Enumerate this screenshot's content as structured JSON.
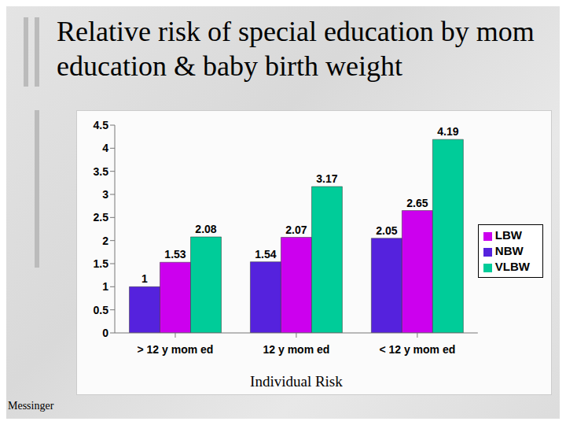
{
  "chart_data": {
    "type": "bar",
    "title": "Relative risk of special education by mom education & baby birth weight",
    "x_label": "Individual Risk",
    "annotations": [
      "Messinger"
    ],
    "categories": [
      "> 12 y mom ed",
      "12 y mom ed",
      "< 12 y mom ed"
    ],
    "series": [
      {
        "name": "NBW",
        "color": "#5522dd",
        "values": [
          1,
          1.54,
          2.05
        ]
      },
      {
        "name": "LBW",
        "color": "#cc00ee",
        "values": [
          1.53,
          2.07,
          2.65
        ]
      },
      {
        "name": "VLBW",
        "color": "#00cc99",
        "values": [
          2.08,
          3.17,
          4.19
        ]
      }
    ],
    "ylim": [
      0,
      4.5
    ],
    "yticks": [
      0,
      0.5,
      1,
      1.5,
      2,
      2.5,
      3,
      3.5,
      4,
      4.5
    ],
    "grid": false,
    "legend": "right",
    "data_labels": true
  }
}
